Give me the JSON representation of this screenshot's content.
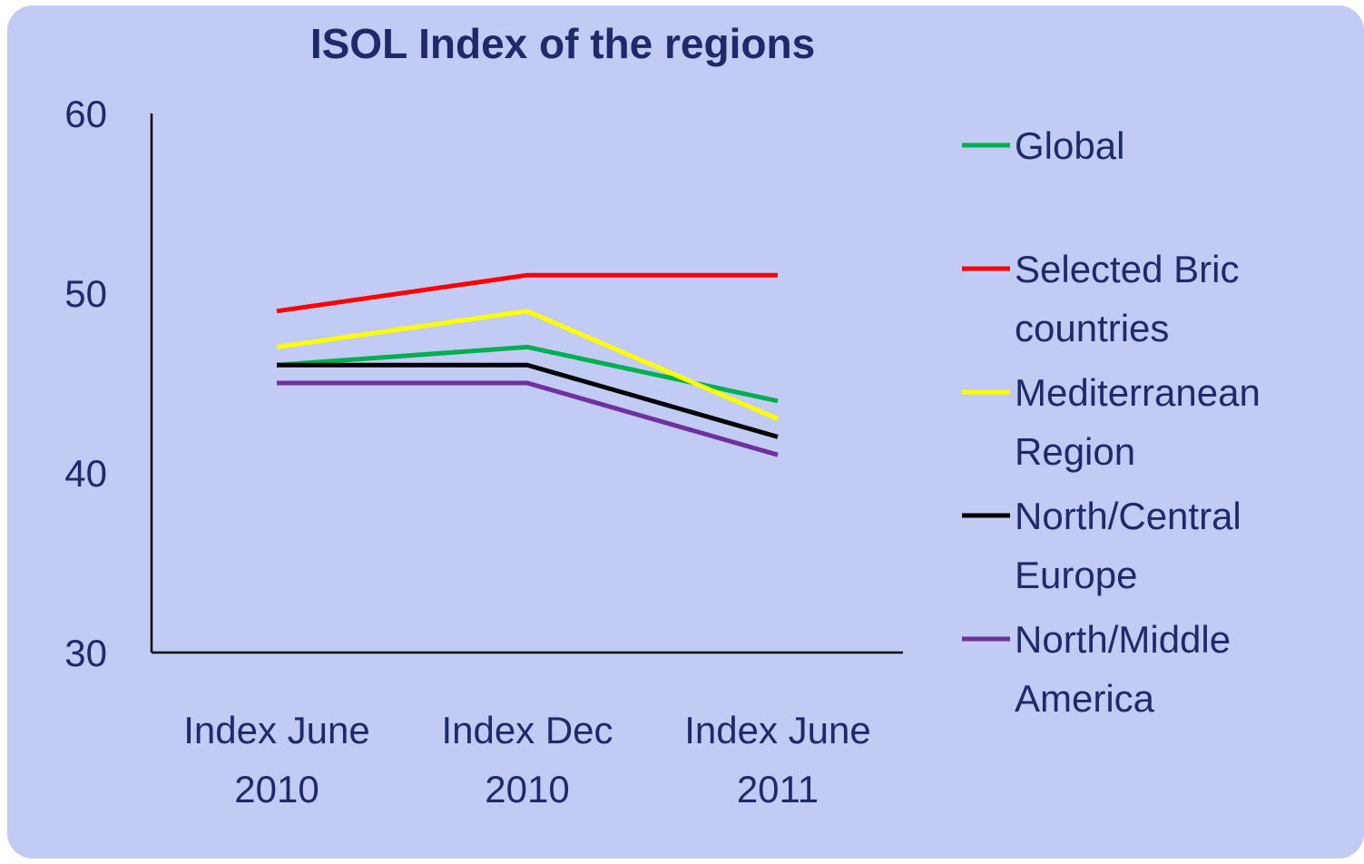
{
  "chart_data": {
    "type": "line",
    "title": "ISOL Index of the regions",
    "categories": [
      "Index June 2010",
      "Index Dec 2010",
      "Index June 2011"
    ],
    "series": [
      {
        "name": "Global",
        "color": "#00b050",
        "values": [
          46,
          47,
          44
        ]
      },
      {
        "name": "Selected Bric countries",
        "color": "#ff0000",
        "values": [
          49,
          51,
          51
        ]
      },
      {
        "name": "Mediterranean Region",
        "color": "#ffff00",
        "values": [
          47,
          49,
          43
        ]
      },
      {
        "name": "North/Central Europe",
        "color": "#000000",
        "values": [
          46,
          46,
          42
        ]
      },
      {
        "name": "North/Middle America",
        "color": "#7030a0",
        "values": [
          45,
          45,
          41
        ]
      }
    ],
    "ylim": [
      30,
      60
    ],
    "yticks": [
      30,
      40,
      50,
      60
    ]
  }
}
